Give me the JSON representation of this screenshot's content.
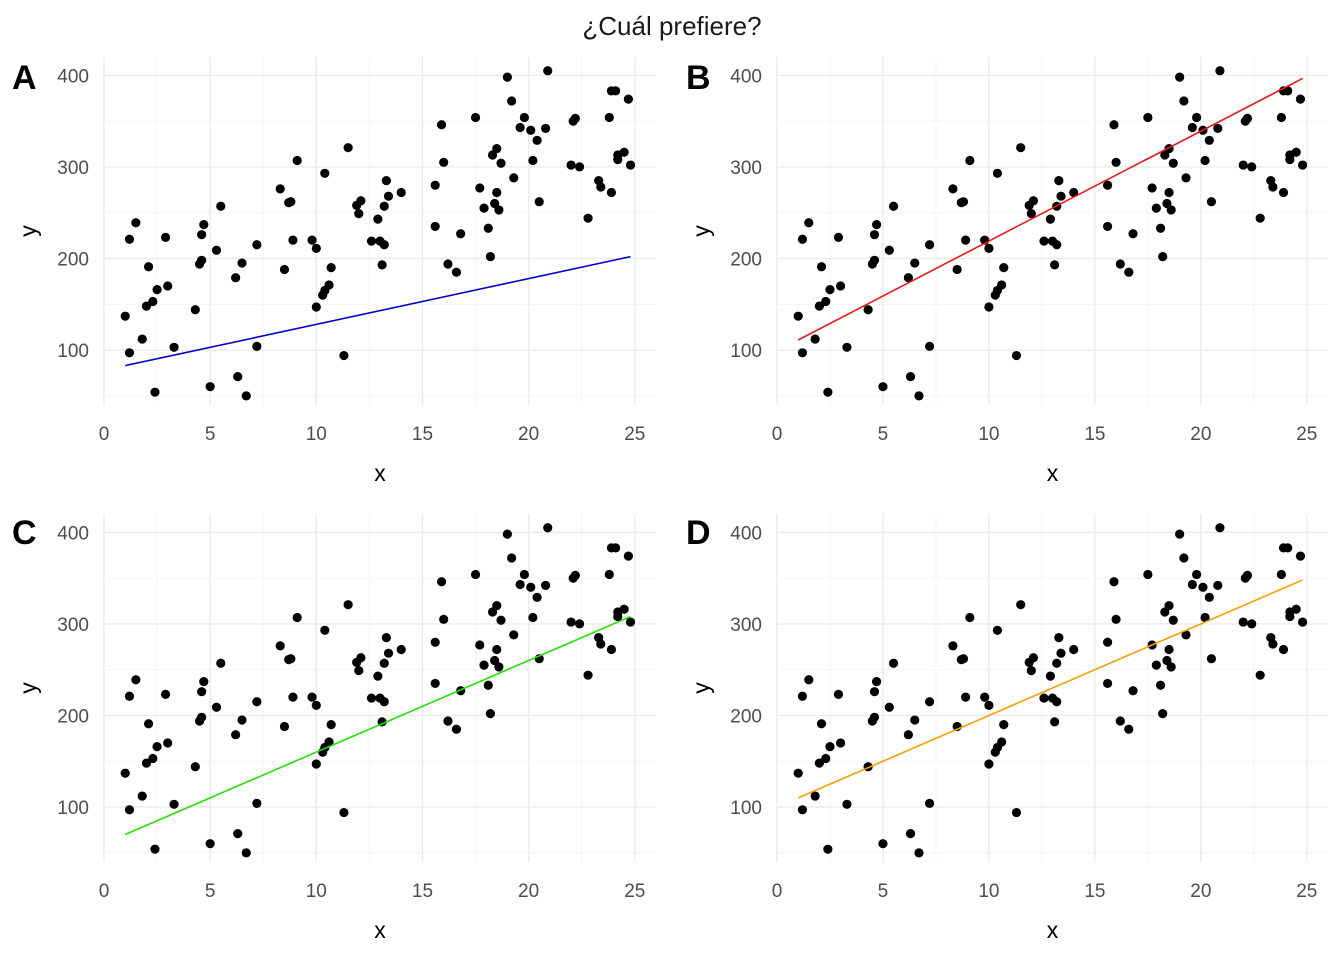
{
  "title": "¿Cuál prefiere?",
  "chart_data": [
    {
      "type": "scatter",
      "tag": "A",
      "xlabel": "x",
      "ylabel": "y",
      "xlim": [
        0,
        26
      ],
      "ylim": [
        40,
        420
      ],
      "xticks": [
        "0",
        "5",
        "10",
        "15",
        "20",
        "25"
      ],
      "yticks": [
        "100",
        "200",
        "300",
        "400"
      ],
      "grid": true,
      "line": {
        "color": "#0000CC",
        "intercept": 78,
        "slope": 5.0,
        "x_range": [
          1.0,
          24.8
        ]
      }
    },
    {
      "type": "scatter",
      "tag": "B",
      "xlabel": "x",
      "ylabel": "y",
      "xlim": [
        0,
        26
      ],
      "ylim": [
        40,
        420
      ],
      "xticks": [
        "0",
        "5",
        "10",
        "15",
        "20",
        "25"
      ],
      "yticks": [
        "100",
        "200",
        "300",
        "400"
      ],
      "grid": true,
      "line": {
        "color": "#E31A1C",
        "intercept": 99,
        "slope": 12.0,
        "x_range": [
          1.0,
          24.8
        ]
      }
    },
    {
      "type": "scatter",
      "tag": "C",
      "xlabel": "x",
      "ylabel": "y",
      "xlim": [
        0,
        26
      ],
      "ylim": [
        40,
        420
      ],
      "xticks": [
        "0",
        "5",
        "10",
        "15",
        "20",
        "25"
      ],
      "yticks": [
        "100",
        "200",
        "300",
        "400"
      ],
      "grid": true,
      "line": {
        "color": "#22E000",
        "intercept": 60,
        "slope": 10.0,
        "x_range": [
          1.0,
          24.8
        ]
      }
    },
    {
      "type": "scatter",
      "tag": "D",
      "xlabel": "x",
      "ylabel": "y",
      "xlim": [
        0,
        26
      ],
      "ylim": [
        40,
        420
      ],
      "xticks": [
        "0",
        "5",
        "10",
        "15",
        "20",
        "25"
      ],
      "yticks": [
        "100",
        "200",
        "300",
        "400"
      ],
      "grid": true,
      "line": {
        "color": "#F5A000",
        "intercept": 100,
        "slope": 10.0,
        "x_range": [
          1.0,
          24.8
        ]
      }
    }
  ],
  "points": [
    [
      1.0,
      137
    ],
    [
      1.2,
      221
    ],
    [
      1.2,
      97
    ],
    [
      1.5,
      239
    ],
    [
      1.8,
      112
    ],
    [
      2.0,
      148
    ],
    [
      2.1,
      191
    ],
    [
      2.3,
      153
    ],
    [
      2.4,
      54
    ],
    [
      2.5,
      166
    ],
    [
      2.9,
      223
    ],
    [
      3.0,
      170
    ],
    [
      3.3,
      103
    ],
    [
      4.3,
      144
    ],
    [
      4.5,
      194
    ],
    [
      4.6,
      198
    ],
    [
      4.6,
      226
    ],
    [
      4.7,
      237
    ],
    [
      5.0,
      60
    ],
    [
      5.3,
      209
    ],
    [
      5.5,
      257
    ],
    [
      6.2,
      179
    ],
    [
      6.3,
      71
    ],
    [
      6.5,
      195
    ],
    [
      6.7,
      50
    ],
    [
      7.2,
      215
    ],
    [
      7.2,
      104
    ],
    [
      8.3,
      276
    ],
    [
      8.5,
      188
    ],
    [
      8.7,
      261
    ],
    [
      8.8,
      262
    ],
    [
      8.9,
      220
    ],
    [
      9.1,
      307
    ],
    [
      9.8,
      220
    ],
    [
      10.0,
      211
    ],
    [
      10.0,
      147
    ],
    [
      10.3,
      160
    ],
    [
      10.4,
      165
    ],
    [
      10.4,
      293
    ],
    [
      10.6,
      171
    ],
    [
      10.7,
      190
    ],
    [
      11.3,
      94
    ],
    [
      11.5,
      321
    ],
    [
      11.9,
      258
    ],
    [
      12.0,
      249
    ],
    [
      12.1,
      263
    ],
    [
      12.6,
      219
    ],
    [
      12.9,
      243
    ],
    [
      13.0,
      219
    ],
    [
      13.1,
      193
    ],
    [
      13.2,
      215
    ],
    [
      13.2,
      257
    ],
    [
      13.3,
      285
    ],
    [
      13.4,
      268
    ],
    [
      14.0,
      272
    ],
    [
      15.6,
      280
    ],
    [
      15.6,
      235
    ],
    [
      15.9,
      346
    ],
    [
      16.0,
      305
    ],
    [
      16.2,
      194
    ],
    [
      16.6,
      185
    ],
    [
      16.8,
      227
    ],
    [
      17.5,
      354
    ],
    [
      17.7,
      277
    ],
    [
      17.9,
      255
    ],
    [
      18.1,
      233
    ],
    [
      18.2,
      202
    ],
    [
      18.3,
      313
    ],
    [
      18.4,
      260
    ],
    [
      18.5,
      272
    ],
    [
      18.5,
      320
    ],
    [
      18.6,
      253
    ],
    [
      18.7,
      304
    ],
    [
      19.0,
      398
    ],
    [
      19.2,
      372
    ],
    [
      19.3,
      288
    ],
    [
      19.6,
      343
    ],
    [
      19.8,
      354
    ],
    [
      20.1,
      340
    ],
    [
      20.2,
      307
    ],
    [
      20.4,
      329
    ],
    [
      20.5,
      262
    ],
    [
      20.8,
      342
    ],
    [
      20.9,
      405
    ],
    [
      22.0,
      302
    ],
    [
      22.1,
      350
    ],
    [
      22.2,
      353
    ],
    [
      22.4,
      300
    ],
    [
      22.8,
      244
    ],
    [
      23.3,
      285
    ],
    [
      23.4,
      278
    ],
    [
      23.8,
      354
    ],
    [
      23.9,
      383
    ],
    [
      23.9,
      272
    ],
    [
      24.1,
      383
    ],
    [
      24.2,
      313
    ],
    [
      24.2,
      308
    ],
    [
      24.5,
      316
    ],
    [
      24.7,
      374
    ],
    [
      24.8,
      302
    ]
  ]
}
